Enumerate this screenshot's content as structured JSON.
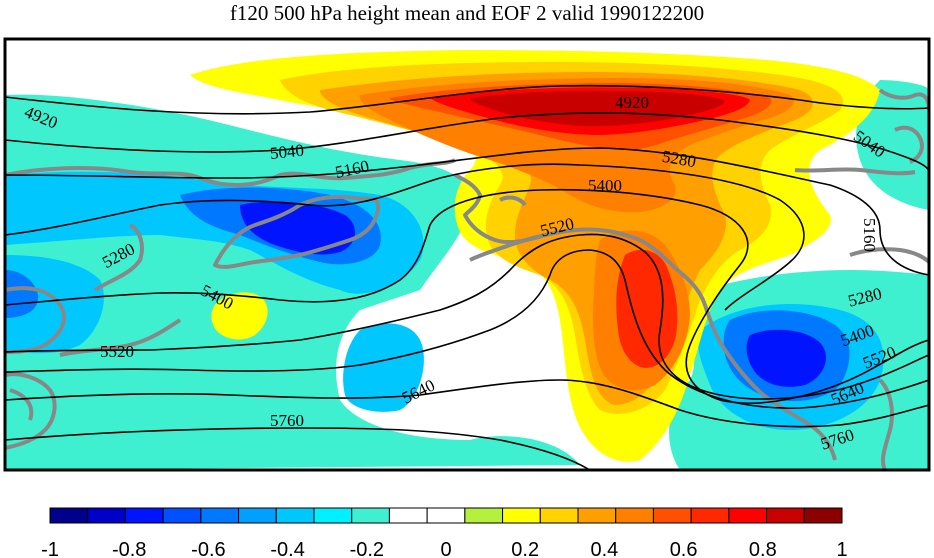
{
  "title": "f120 500 hPa height mean and EOF 2 valid 1990122200",
  "contour_labels": [
    "4920",
    "5040",
    "5160",
    "5280",
    "5400",
    "5520",
    "5640",
    "5760"
  ],
  "colorbar": {
    "colors": [
      "#00008c",
      "#0000c8",
      "#0014ff",
      "#0050ff",
      "#0078ff",
      "#00a0ff",
      "#00c8ff",
      "#00f0ff",
      "#3ff0d0",
      "#ffffff",
      "#ffffff",
      "#b4f03c",
      "#ffff00",
      "#ffd200",
      "#ffa000",
      "#ff8000",
      "#ff5000",
      "#ff2800",
      "#ff0000",
      "#c80000",
      "#8c0000"
    ],
    "tick_labels": [
      "-1",
      "-0.8",
      "-0.6",
      "-0.4",
      "-0.2",
      "0",
      "0.2",
      "0.4",
      "0.6",
      "0.8",
      "1"
    ]
  }
}
